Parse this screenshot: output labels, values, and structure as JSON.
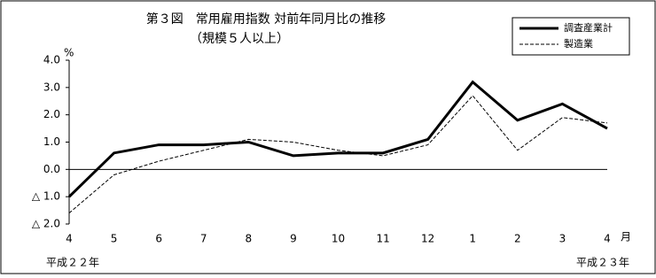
{
  "chart_data": {
    "type": "line",
    "title": "第３図　常用雇用指数 対前年同月比の推移",
    "subtitle": "（規模５人以上）",
    "y_label": "%",
    "x_label": "月",
    "annotations": [
      "平成２２年",
      "平成２３年"
    ],
    "categories": [
      "4",
      "5",
      "6",
      "7",
      "8",
      "9",
      "10",
      "11",
      "12",
      "1",
      "2",
      "3",
      "4"
    ],
    "series": [
      {
        "name": "調査産業計",
        "color": "#000000",
        "style": "solid",
        "values": [
          -1.0,
          0.6,
          0.9,
          0.9,
          1.0,
          0.5,
          0.6,
          0.6,
          1.1,
          3.2,
          1.8,
          2.4,
          1.5
        ]
      },
      {
        "name": "製造業",
        "color": "#000000",
        "style": "dashed",
        "values": [
          -1.6,
          -0.2,
          0.3,
          0.7,
          1.1,
          1.0,
          0.7,
          0.5,
          0.9,
          2.7,
          0.7,
          1.9,
          1.7
        ]
      }
    ],
    "ylim": [
      -2,
      4
    ],
    "yticks": [
      {
        "value": 4,
        "label": "4.0"
      },
      {
        "value": 3,
        "label": "3.0"
      },
      {
        "value": 2,
        "label": "2.0"
      },
      {
        "value": 1,
        "label": "1.0"
      },
      {
        "value": 0,
        "label": "0.0"
      },
      {
        "value": -1,
        "label": "△ 1.0"
      },
      {
        "value": -2,
        "label": "△ 2.0"
      }
    ],
    "legend": "upper right"
  }
}
